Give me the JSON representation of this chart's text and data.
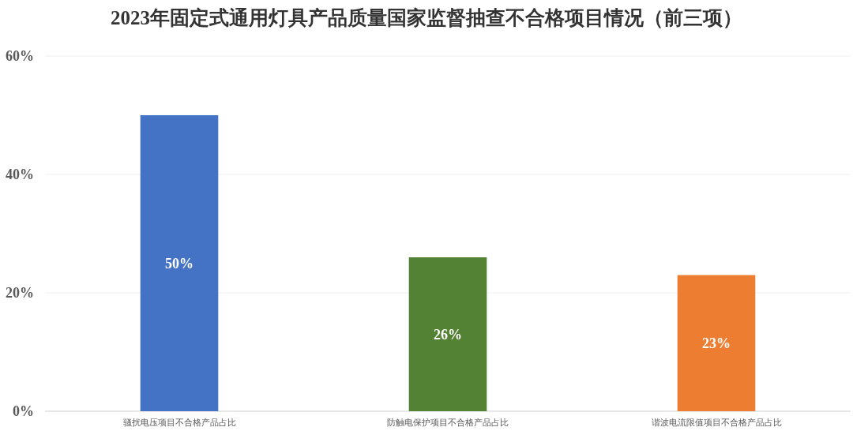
{
  "chart_data": {
    "type": "bar",
    "title": "2023年固定式通用灯具产品质量国家监督抽查不合格项目情况（前三项）",
    "categories": [
      "骚扰电压项目不合格产品占比",
      "防触电保护项目不合格产品占比",
      "谐波电流限值项目不合格产品占比"
    ],
    "values": [
      50,
      26,
      23
    ],
    "colors": [
      "#4472c4",
      "#548235",
      "#ed7d31"
    ],
    "value_labels": [
      "50%",
      "26%",
      "23%"
    ],
    "ylim": [
      0,
      60
    ],
    "yticks": [
      {
        "value": 0,
        "label": "0%"
      },
      {
        "value": 20,
        "label": "20%"
      },
      {
        "value": 40,
        "label": "40%"
      },
      {
        "value": 60,
        "label": "60%"
      }
    ],
    "grid": "y"
  }
}
